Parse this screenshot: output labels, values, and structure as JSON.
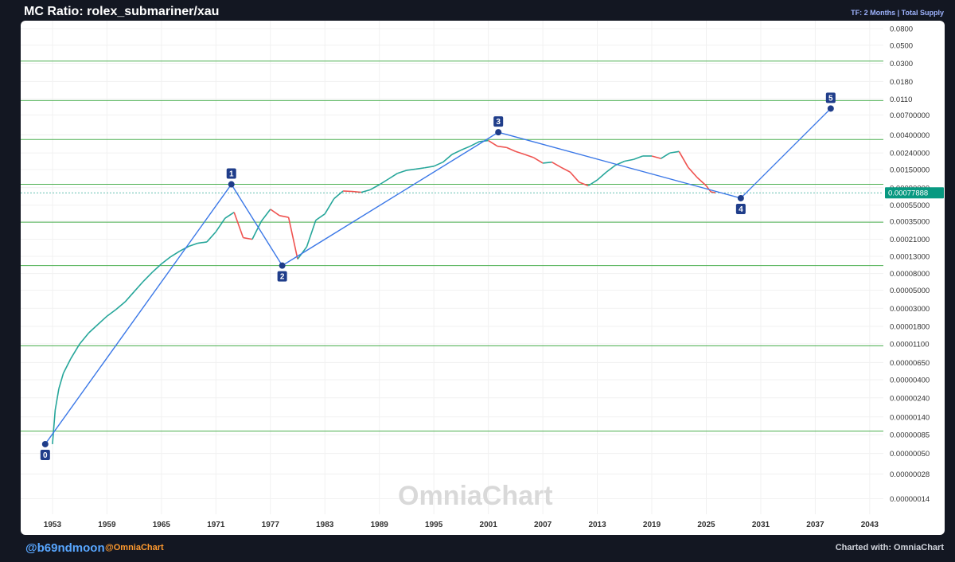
{
  "header": {
    "title": "MC Ratio: rolex_submariner/xau",
    "timeframe": "TF: 2 Months | Total Supply"
  },
  "footer": {
    "handle": "@b69ndmoon",
    "brand": "@OmniaChart",
    "credit": "Charted with: OmniaChart"
  },
  "watermark": "OmniaChart",
  "chart_data": {
    "type": "line",
    "scale": "log",
    "xlim": [
      1949.5,
      2044.5
    ],
    "ylim": [
      9e-08,
      0.1
    ],
    "x_ticks": [
      "1953",
      "1959",
      "1965",
      "1971",
      "1977",
      "1983",
      "1989",
      "1995",
      "2001",
      "2007",
      "2013",
      "2019",
      "2025",
      "2031",
      "2037",
      "2043"
    ],
    "y_ticks": [
      "0.0800",
      "0.0500",
      "0.0300",
      "0.0180",
      "0.0110",
      "0.00700000",
      "0.00400000",
      "0.00240000",
      "0.00150000",
      "0.00090000",
      "0.00055000",
      "0.00035000",
      "0.00021000",
      "0.00013000",
      "0.00008000",
      "0.00005000",
      "0.00003000",
      "0.00001800",
      "0.00001100",
      "0.00000650",
      "0.00000400",
      "0.00000240",
      "0.00000140",
      "0.00000085",
      "0.00000050",
      "0.00000028",
      "0.00000014"
    ],
    "current_price": {
      "value": 0.00077888,
      "label": "0.00077888",
      "color": "#089981"
    },
    "horizontal_levels": [
      0.032,
      0.0105,
      0.0035,
      0.00099,
      0.00034,
      0.0001,
      1.04e-05,
      9.4e-07
    ],
    "level_color": "#4caf50",
    "wave_color": "#3b78e7",
    "wave_points": [
      {
        "label": "0",
        "x": 1952.2,
        "y": 6.5e-07
      },
      {
        "label": "1",
        "x": 1972.7,
        "y": 0.00099
      },
      {
        "label": "2",
        "x": 1978.3,
        "y": 0.0001
      },
      {
        "label": "3",
        "x": 2002.1,
        "y": 0.0043
      },
      {
        "label": "4",
        "x": 2028.8,
        "y": 0.00067
      },
      {
        "label": "5",
        "x": 2038.7,
        "y": 0.0084
      }
    ],
    "price_series": {
      "up_color": "#26a69a",
      "down_color": "#ef5350",
      "x": [
        1953.0,
        1953.3,
        1953.7,
        1954.2,
        1955.0,
        1956.0,
        1957.0,
        1958.0,
        1959.0,
        1960.0,
        1961.0,
        1962.0,
        1963.0,
        1964.0,
        1965.0,
        1966.0,
        1967.0,
        1968.0,
        1969.0,
        1970.0,
        1971.0,
        1972.0,
        1973.0,
        1974.0,
        1975.0,
        1976.0,
        1977.0,
        1978.0,
        1979.0,
        1980.0,
        1981.0,
        1982.0,
        1983.0,
        1984.0,
        1985.0,
        1986.0,
        1987.0,
        1988.0,
        1989.0,
        1990.0,
        1991.0,
        1992.0,
        1993.0,
        1994.0,
        1995.0,
        1996.0,
        1997.0,
        1998.0,
        1999.0,
        2000.0,
        2001.0,
        2002.0,
        2003.0,
        2004.0,
        2005.0,
        2006.0,
        2007.0,
        2008.0,
        2009.0,
        2010.0,
        2011.0,
        2012.0,
        2013.0,
        2014.0,
        2015.0,
        2016.0,
        2017.0,
        2018.0,
        2019.0,
        2020.0,
        2021.0,
        2022.0,
        2023.0,
        2024.0,
        2025.0,
        2025.5,
        2026.0
      ],
      "y": [
        6.5e-07,
        1.7e-06,
        3.1e-06,
        4.8e-06,
        7.2e-06,
        1.1e-05,
        1.5e-05,
        1.9e-05,
        2.4e-05,
        2.9e-05,
        3.6e-05,
        4.8e-05,
        6.4e-05,
        8.3e-05,
        0.000105,
        0.000128,
        0.00015,
        0.000172,
        0.000188,
        0.000195,
        0.00026,
        0.00038,
        0.00045,
        0.00022,
        0.00021,
        0.00035,
        0.00049,
        0.00041,
        0.00039,
        0.00012,
        0.00017,
        0.00036,
        0.00043,
        0.00066,
        0.00082,
        0.00081,
        0.00079,
        0.00085,
        0.00098,
        0.00115,
        0.00135,
        0.00147,
        0.00152,
        0.00158,
        0.00165,
        0.00185,
        0.0023,
        0.0026,
        0.0029,
        0.0033,
        0.0034,
        0.0029,
        0.0028,
        0.0025,
        0.0023,
        0.0021,
        0.0018,
        0.00185,
        0.0016,
        0.0014,
        0.00105,
        0.00095,
        0.00112,
        0.0014,
        0.0017,
        0.0019,
        0.002,
        0.0022,
        0.0022,
        0.00205,
        0.0024,
        0.0025,
        0.0016,
        0.0012,
        0.00095,
        0.0008,
        0.00078
      ]
    }
  }
}
